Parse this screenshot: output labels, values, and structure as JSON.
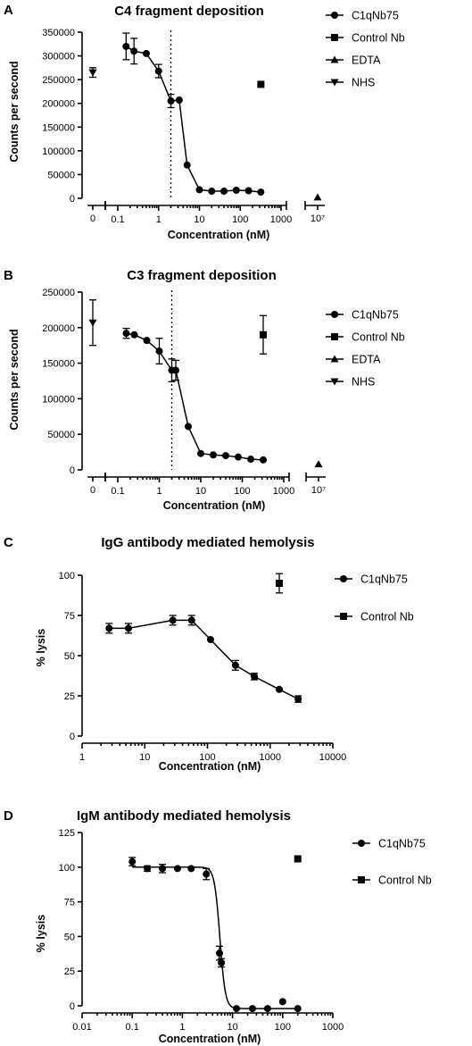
{
  "chart_data": [
    {
      "panel": "A",
      "type": "scatter",
      "title": "C4 fragment deposition",
      "xlabel": "Concentration (nM)",
      "ylabel": "Counts per second",
      "xscale": "log",
      "xlim": [
        0.1,
        1000
      ],
      "ylim": [
        0,
        350000
      ],
      "y_ticks": [
        0,
        50000,
        100000,
        150000,
        200000,
        250000,
        300000,
        350000
      ],
      "x_ticks": [
        {
          "value": 0.1,
          "label": "0.1"
        },
        {
          "value": 1,
          "label": "1"
        },
        {
          "value": 10,
          "label": "10"
        },
        {
          "value": 100,
          "label": "100"
        },
        {
          "value": 1000,
          "label": "1000"
        }
      ],
      "left_break_tick": "0",
      "right_break_tick": "10⁷",
      "vline_x": 2.0,
      "series": [
        {
          "name": "C1qNb75",
          "marker": "circle",
          "connected": true,
          "x": [
            0.16,
            0.25,
            0.5,
            1.0,
            2.0,
            3.2,
            5.0,
            10,
            20,
            40,
            80,
            160,
            320
          ],
          "y": [
            320000,
            310000,
            305000,
            268000,
            205000,
            207000,
            70000,
            18000,
            15000,
            15000,
            17000,
            16000,
            13000
          ],
          "err": [
            28000,
            27000,
            0,
            14000,
            14000,
            0,
            0,
            0,
            0,
            0,
            0,
            0,
            0
          ]
        },
        {
          "name": "Control Nb",
          "marker": "square",
          "x": [
            320
          ],
          "y": [
            240000
          ],
          "err": [
            0
          ]
        },
        {
          "name": "EDTA",
          "marker": "triangle-up",
          "position": "right-break",
          "y": [
            2000
          ],
          "err": [
            0
          ]
        },
        {
          "name": "NHS",
          "marker": "triangle-down",
          "position": "left-break",
          "y": [
            265000
          ],
          "err": [
            10000
          ]
        }
      ],
      "legend": [
        "C1qNb75",
        "Control Nb",
        "EDTA",
        "NHS"
      ]
    },
    {
      "panel": "B",
      "type": "scatter",
      "title": "C3 fragment deposition",
      "xlabel": "Concentration (nM)",
      "ylabel": "Counts per second",
      "xscale": "log",
      "xlim": [
        0.1,
        1000
      ],
      "ylim": [
        0,
        250000
      ],
      "y_ticks": [
        0,
        50000,
        100000,
        150000,
        200000,
        250000
      ],
      "x_ticks": [
        {
          "value": 0.1,
          "label": "0.1"
        },
        {
          "value": 1,
          "label": "1"
        },
        {
          "value": 10,
          "label": "10"
        },
        {
          "value": 100,
          "label": "100"
        },
        {
          "value": 1000,
          "label": "1000"
        }
      ],
      "left_break_tick": "0",
      "right_break_tick": "10⁷",
      "vline_x": 2.0,
      "series": [
        {
          "name": "C1qNb75",
          "marker": "circle",
          "connected": true,
          "x": [
            0.16,
            0.25,
            0.5,
            1.0,
            2.0,
            2.5,
            5.0,
            10,
            20,
            40,
            80,
            160,
            320
          ],
          "y": [
            192000,
            190000,
            182000,
            167000,
            140000,
            140000,
            61000,
            23000,
            21000,
            20000,
            18000,
            15000,
            14000
          ],
          "err": [
            7000,
            0,
            0,
            18000,
            16000,
            14000,
            0,
            0,
            0,
            0,
            0,
            0,
            0
          ]
        },
        {
          "name": "Control Nb",
          "marker": "square",
          "x": [
            320
          ],
          "y": [
            190000
          ],
          "err": [
            27000
          ]
        },
        {
          "name": "EDTA",
          "marker": "triangle-up",
          "position": "right-break",
          "y": [
            8000
          ],
          "err": [
            0
          ]
        },
        {
          "name": "NHS",
          "marker": "triangle-down",
          "position": "left-break",
          "y": [
            207000
          ],
          "err": [
            32000
          ]
        }
      ],
      "legend": [
        "C1qNb75",
        "Control Nb",
        "EDTA",
        "NHS"
      ]
    },
    {
      "panel": "C",
      "type": "scatter",
      "title": "IgG antibody mediated hemolysis",
      "xlabel": "Concentration (nM)",
      "ylabel": "% lysis",
      "xscale": "log",
      "xlim": [
        1,
        10000
      ],
      "ylim": [
        0,
        100
      ],
      "y_ticks": [
        0,
        25,
        50,
        75,
        100
      ],
      "x_ticks": [
        {
          "value": 1,
          "label": "1"
        },
        {
          "value": 10,
          "label": "10"
        },
        {
          "value": 100,
          "label": "100"
        },
        {
          "value": 1000,
          "label": "1000"
        },
        {
          "value": 10000,
          "label": "10000"
        }
      ],
      "series": [
        {
          "name": "C1qNb75",
          "marker": "circle",
          "connected": true,
          "x": [
            2.7,
            5.5,
            28,
            56,
            112,
            280,
            560,
            1400,
            2800
          ],
          "y": [
            67,
            67,
            72,
            72,
            60,
            44,
            37,
            29,
            23
          ],
          "err": [
            3,
            3,
            3,
            3,
            0,
            3,
            2,
            0,
            2
          ]
        },
        {
          "name": "Control Nb",
          "marker": "square",
          "x": [
            1400
          ],
          "y": [
            95
          ],
          "err": [
            6
          ]
        }
      ],
      "legend": [
        "C1qNb75",
        "Control Nb"
      ]
    },
    {
      "panel": "D",
      "type": "scatter",
      "title": "IgM antibody mediated hemolysis",
      "xlabel": "Concentration (nM)",
      "ylabel": "% lysis",
      "xscale": "log",
      "xlim": [
        0.01,
        1000
      ],
      "ylim": [
        0,
        125
      ],
      "y_ticks": [
        0,
        25,
        50,
        75,
        100,
        125
      ],
      "x_ticks": [
        {
          "value": 0.01,
          "label": "0.01"
        },
        {
          "value": 0.1,
          "label": "0.1"
        },
        {
          "value": 1,
          "label": "1"
        },
        {
          "value": 10,
          "label": "10"
        },
        {
          "value": 100,
          "label": "100"
        },
        {
          "value": 1000,
          "label": "1000"
        }
      ],
      "series": [
        {
          "name": "C1qNb75",
          "marker": "circle",
          "connected": true,
          "curve": "sigmoid",
          "x": [
            0.1,
            0.2,
            0.4,
            0.8,
            1.5,
            3.0,
            5.5,
            6.0,
            12,
            25,
            50,
            100,
            200
          ],
          "y": [
            104,
            99,
            99,
            99,
            99,
            95,
            38,
            31,
            -2,
            -2,
            -2,
            3,
            -2
          ],
          "err": [
            3,
            2,
            3,
            0,
            0,
            4,
            5,
            3,
            0,
            0,
            0,
            0,
            0
          ]
        },
        {
          "name": "Control Nb",
          "marker": "square",
          "x": [
            200
          ],
          "y": [
            106
          ],
          "err": [
            0
          ]
        }
      ],
      "legend": [
        "C1qNb75",
        "Control Nb"
      ]
    }
  ]
}
